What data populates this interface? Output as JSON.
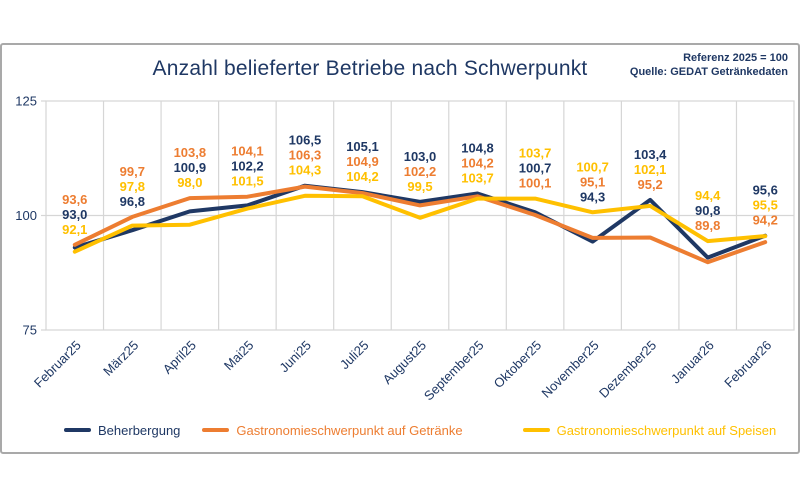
{
  "header": {
    "title": "Anzahl belieferter Betriebe nach Schwerpunkt",
    "reference_note": "Referenz 2025 = 100",
    "source_note": "Quelle: GEDAT Getränkedaten"
  },
  "colors": {
    "navy": "#1f3864",
    "orange": "#ed7d31",
    "yellow": "#ffc000",
    "grid": "#d6d6d6",
    "frame": "#a9a9a9",
    "axis_text": "#1f3864"
  },
  "chart_data": {
    "type": "line",
    "title": "Anzahl belieferter Betriebe nach Schwerpunkt",
    "categories": [
      "Februar25",
      "März25",
      "April25",
      "Mai25",
      "Juni25",
      "Juli25",
      "August25",
      "September25",
      "Oktober25",
      "November25",
      "Dezember25",
      "Januar26",
      "Februar26"
    ],
    "series": [
      {
        "name": "Beherbergung",
        "color": "#1f3864",
        "values": [
          93.0,
          96.8,
          100.9,
          102.2,
          106.5,
          105.1,
          103.0,
          104.8,
          100.7,
          94.3,
          103.4,
          90.8,
          95.6
        ]
      },
      {
        "name": "Gastronomieschwerpunkt auf Getränke",
        "color": "#ed7d31",
        "values": [
          93.6,
          99.7,
          103.8,
          104.1,
          106.3,
          104.9,
          102.2,
          104.2,
          100.1,
          95.1,
          95.2,
          89.8,
          94.2
        ]
      },
      {
        "name": "Gastronomieschwerpunkt auf Speisen",
        "color": "#ffc000",
        "values": [
          92.1,
          97.8,
          98.0,
          101.5,
          104.3,
          104.2,
          99.5,
          103.7,
          103.7,
          100.7,
          102.1,
          94.4,
          95.5
        ]
      }
    ],
    "ylim": [
      75,
      125
    ],
    "yticks": [
      75,
      100,
      125
    ],
    "grid": "vertical column gridlines + horizontal line at 100",
    "legend_position": "bottom",
    "data_labels": "shown, one decimal, comma separator",
    "decimal_separator": ","
  }
}
